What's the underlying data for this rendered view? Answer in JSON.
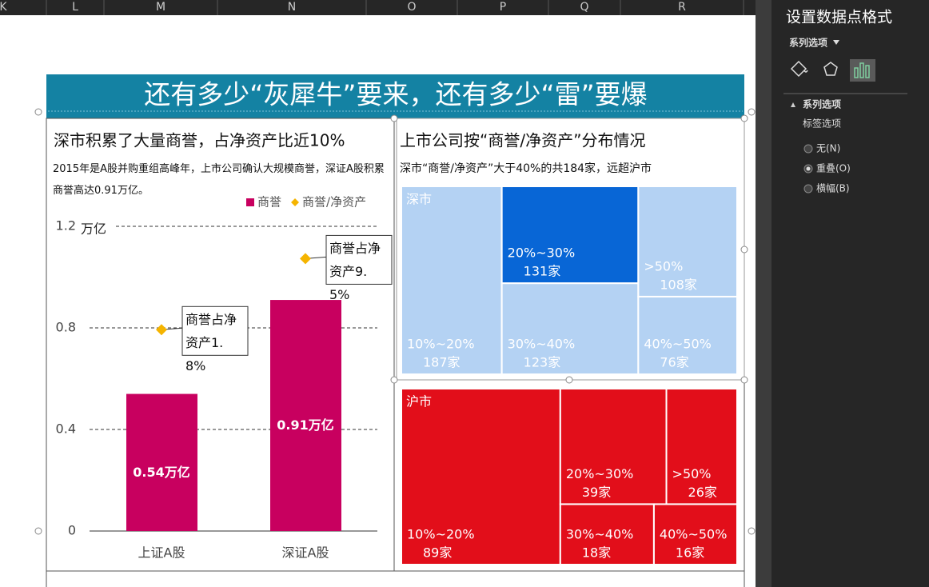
{
  "sheet": {
    "columns": [
      "K",
      "L",
      "M",
      "N",
      "O",
      "P",
      "Q",
      "R"
    ]
  },
  "dashboard": {
    "title": "还有多少“灰犀牛”要来，还有多少“雷”要爆"
  },
  "chart_data": [
    {
      "type": "bar",
      "title": "深市积累了大量商誉，占净资产比近10%",
      "subtitle": "2015年是A股并购重组高峰年，上市公司确认大规模商誉，深证A股积累商誉高达0.91万亿。",
      "y_unit": "万亿",
      "categories": [
        "上证A股",
        "深证A股"
      ],
      "series": [
        {
          "name": "商誉",
          "type": "bar",
          "color": "#c8005f",
          "values": [
            0.54,
            0.91
          ],
          "value_labels": [
            "0.54万亿",
            "0.91万亿"
          ]
        },
        {
          "name": "商誉/净资产",
          "type": "scatter",
          "axis": "y2",
          "color": "#f5b400",
          "values": [
            1.8,
            9.5
          ],
          "value_labels": [
            "商誉占净资产1.8%",
            "商誉占净资产9.5%"
          ]
        }
      ],
      "ylim": [
        0,
        1.2
      ],
      "yticks": [
        0,
        0.4,
        0.8,
        1.2
      ],
      "y2lim": [
        -20,
        13
      ],
      "grid": true,
      "legend": "top-right"
    },
    {
      "type": "treemap",
      "title": "上市公司按“商誉/净资产”分布情况",
      "subtitle": "深市“商誉/净资产”大于40%的共184家，远超沪市",
      "groups": [
        {
          "name": "深市",
          "categories": [
            "10%~20%",
            "20%~30%",
            "30%~40%",
            ">50%",
            "40%~50%"
          ],
          "values": [
            187,
            131,
            123,
            108,
            76
          ],
          "value_labels": [
            "187家",
            "131家",
            "123家",
            "108家",
            "76家"
          ],
          "colors": [
            "#b4d2f3",
            "#0866d6",
            "#b4d2f3",
            "#b4d2f3",
            "#b4d2f3"
          ]
        },
        {
          "name": "沪市",
          "categories": [
            "10%~20%",
            "20%~30%",
            ">50%",
            "30%~40%",
            "40%~50%"
          ],
          "values": [
            89,
            39,
            26,
            18,
            16
          ],
          "value_labels": [
            "89家",
            "39家",
            "26家",
            "18家",
            "16家"
          ],
          "colors": [
            "#e20e1a",
            "#e20e1a",
            "#e20e1a",
            "#e20e1a",
            "#e20e1a"
          ]
        }
      ]
    }
  ],
  "format_pane": {
    "title": "设置数据点格式",
    "series_options": "系列选项",
    "section": "系列选项",
    "label_options": "标签选项",
    "options": [
      "无(N)",
      "重叠(O)",
      "横幅(B)"
    ],
    "selected": 1
  }
}
